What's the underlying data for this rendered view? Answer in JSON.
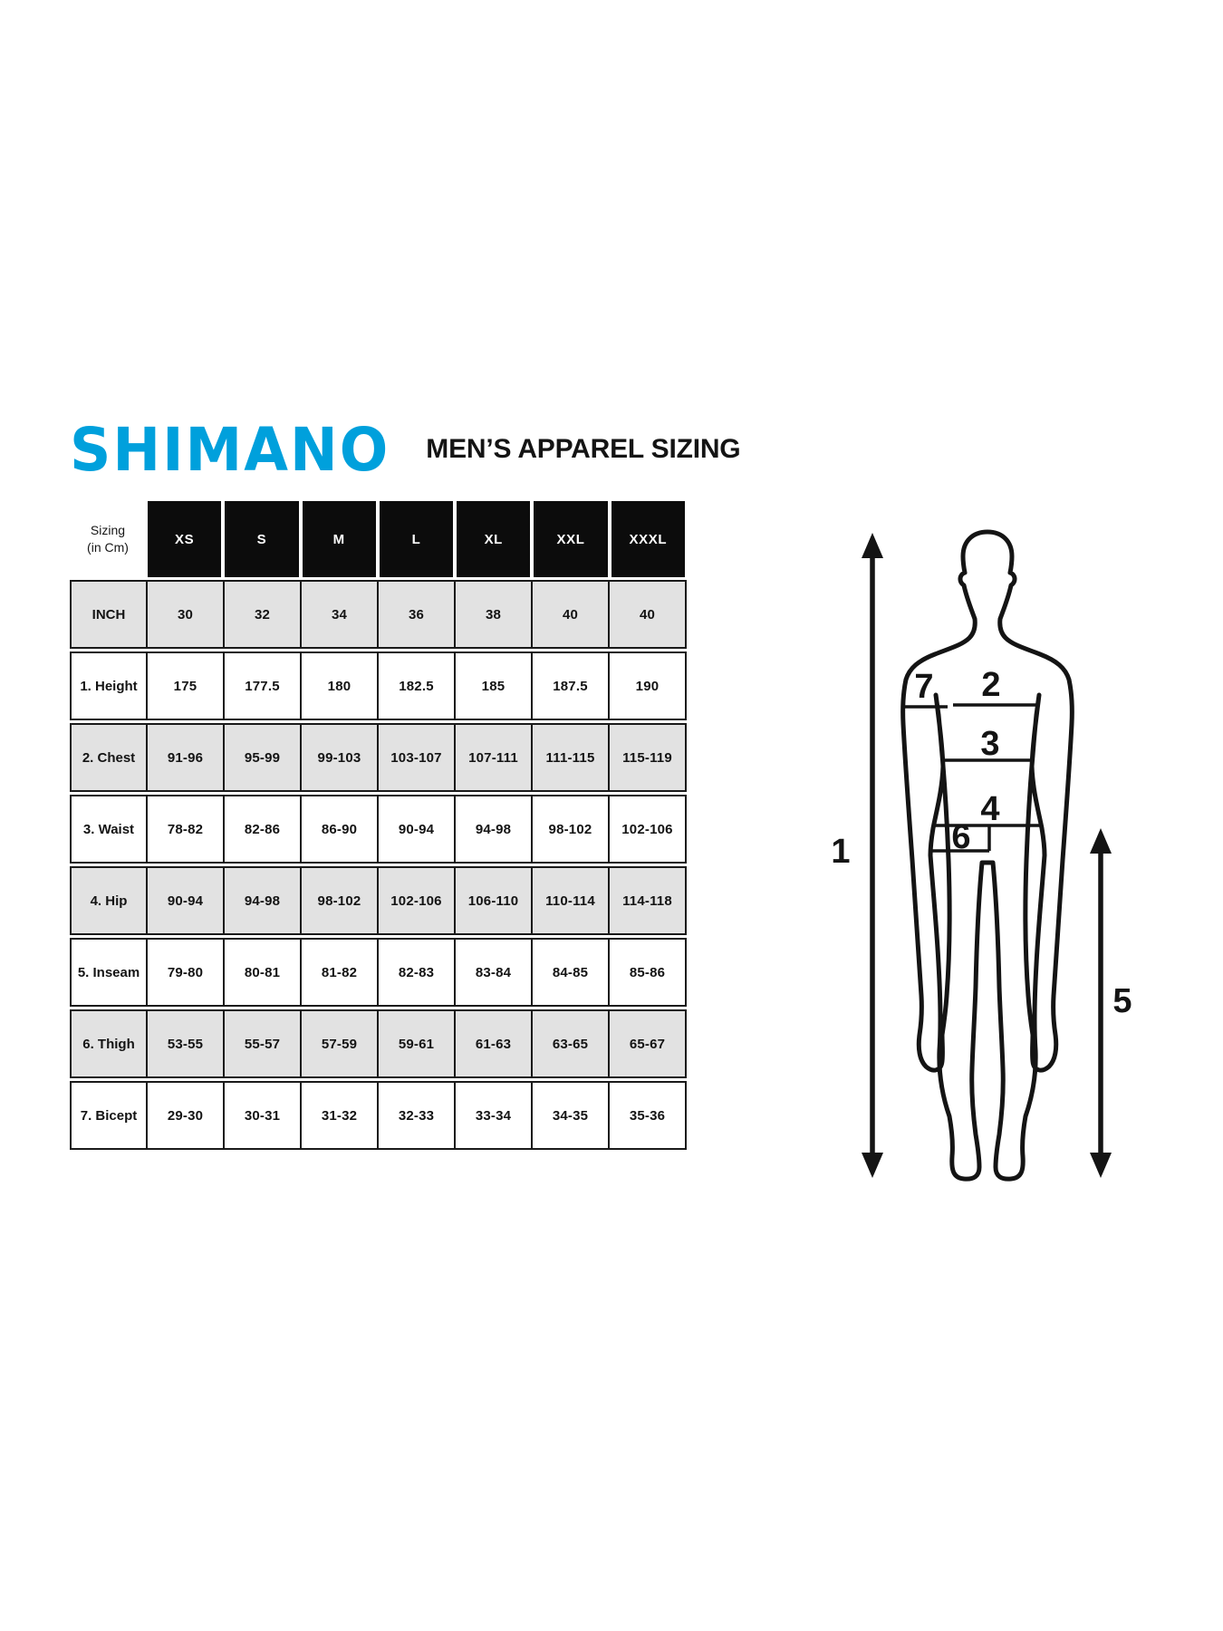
{
  "brand": {
    "logo_text": "SHIMANO",
    "logo_color": "#00A0DC"
  },
  "page_title": "MEN’S APPAREL SIZING",
  "sizing_table": {
    "corner_label": [
      "Sizing",
      "(in Cm)"
    ],
    "size_headers": [
      "XS",
      "S",
      "M",
      "L",
      "XL",
      "XXL",
      "XXXL"
    ],
    "rows": [
      {
        "label": "INCH",
        "shaded": true,
        "values": [
          "30",
          "32",
          "34",
          "36",
          "38",
          "40",
          "40"
        ]
      },
      {
        "label": "1. Height",
        "shaded": false,
        "values": [
          "175",
          "177.5",
          "180",
          "182.5",
          "185",
          "187.5",
          "190"
        ]
      },
      {
        "label": "2. Chest",
        "shaded": true,
        "values": [
          "91-96",
          "95-99",
          "99-103",
          "103-107",
          "107-111",
          "111-115",
          "115-119"
        ]
      },
      {
        "label": "3. Waist",
        "shaded": false,
        "values": [
          "78-82",
          "82-86",
          "86-90",
          "90-94",
          "94-98",
          "98-102",
          "102-106"
        ]
      },
      {
        "label": "4. Hip",
        "shaded": true,
        "values": [
          "90-94",
          "94-98",
          "98-102",
          "102-106",
          "106-110",
          "110-114",
          "114-118"
        ]
      },
      {
        "label": "5. Inseam",
        "shaded": false,
        "values": [
          "79-80",
          "80-81",
          "81-82",
          "82-83",
          "83-84",
          "84-85",
          "85-86"
        ]
      },
      {
        "label": "6. Thigh",
        "shaded": true,
        "values": [
          "53-55",
          "55-57",
          "57-59",
          "59-61",
          "61-63",
          "63-65",
          "65-67"
        ]
      },
      {
        "label": "7. Bicept",
        "shaded": false,
        "values": [
          "29-30",
          "30-31",
          "31-32",
          "32-33",
          "33-34",
          "34-35",
          "35-36"
        ]
      }
    ],
    "colors": {
      "header_bg": "#0c0c0c",
      "header_text": "#ffffff",
      "shaded_row": "#e2e2e2",
      "border": "#1a1a1a"
    }
  },
  "figure": {
    "markers": {
      "m1": "1",
      "m2": "2",
      "m3": "3",
      "m4": "4",
      "m5": "5",
      "m6": "6",
      "m7": "7"
    }
  }
}
